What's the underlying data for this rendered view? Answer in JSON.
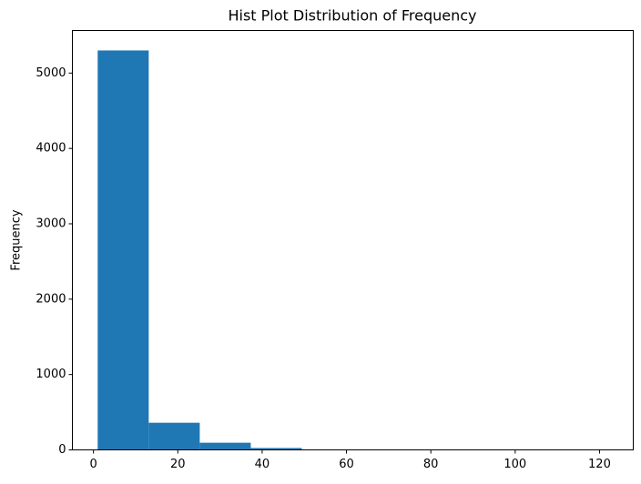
{
  "chart_data": {
    "type": "histogram",
    "title": "Hist Plot Distribution of Frequency",
    "y_label": "Frequency",
    "bins": [
      1,
      13.1,
      25.2,
      37.3,
      49.4,
      61.5,
      73.6,
      85.7,
      97.8,
      109.9,
      122
    ],
    "values": [
      5300,
      360,
      95,
      25,
      6,
      3,
      2,
      1,
      1,
      1
    ],
    "color": "#1f77b4",
    "xlim": [
      -5,
      128
    ],
    "ylim": [
      0,
      5565
    ],
    "xticks": [
      0,
      20,
      40,
      60,
      80,
      100,
      120
    ],
    "yticks": [
      0,
      1000,
      2000,
      3000,
      4000,
      5000
    ],
    "grid": false
  }
}
